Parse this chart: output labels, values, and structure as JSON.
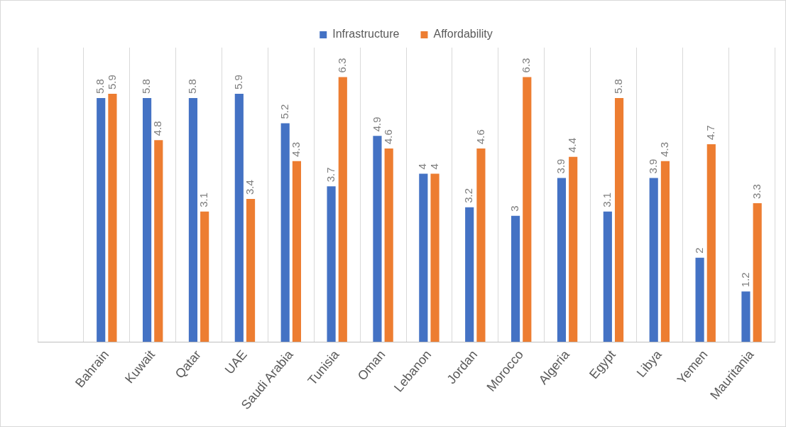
{
  "chart_data": {
    "type": "bar",
    "categories": [
      null,
      "Bahrain",
      "Kuwait",
      "Qatar",
      "UAE",
      "Saudi Arabia",
      "Tunisia",
      "Oman",
      "Lebanon",
      "Jordan",
      "Morocco",
      "Algeria",
      "Egypt",
      "Libya",
      "Yemen",
      "Mauritania"
    ],
    "series": [
      {
        "name": "Infrastructure",
        "color": "#4472c4",
        "values": [
          null,
          5.8,
          5.8,
          5.8,
          5.9,
          5.2,
          3.7,
          4.9,
          4,
          3.2,
          3,
          3.9,
          3.1,
          3.9,
          2,
          1.2
        ]
      },
      {
        "name": "Affordability",
        "color": "#ed7d31",
        "values": [
          null,
          5.9,
          4.8,
          3.1,
          3.4,
          4.3,
          6.3,
          4.6,
          4,
          4.6,
          6.3,
          4.4,
          5.8,
          4.3,
          4.7,
          3.3
        ]
      }
    ],
    "ylim": [
      0,
      7
    ],
    "tick_labels": "x",
    "grid": "x",
    "legend": "top",
    "data_labels": true
  }
}
